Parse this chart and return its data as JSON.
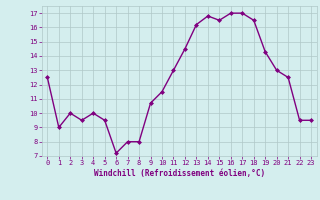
{
  "x": [
    0,
    1,
    2,
    3,
    4,
    5,
    6,
    7,
    8,
    9,
    10,
    11,
    12,
    13,
    14,
    15,
    16,
    17,
    18,
    19,
    20,
    21,
    22,
    23
  ],
  "y": [
    12.5,
    9.0,
    10.0,
    9.5,
    10.0,
    9.5,
    7.2,
    8.0,
    8.0,
    10.7,
    11.5,
    13.0,
    14.5,
    16.2,
    16.8,
    16.5,
    17.0,
    17.0,
    16.5,
    14.3,
    13.0,
    12.5,
    9.5,
    9.5
  ],
  "line_color": "#800080",
  "marker": "D",
  "marker_size": 2,
  "bg_color": "#d4eeee",
  "grid_color": "#b0c8c8",
  "xlabel": "Windchill (Refroidissement éolien,°C)",
  "xlabel_color": "#800080",
  "tick_color": "#800080",
  "ylim": [
    7,
    17.5
  ],
  "xlim": [
    -0.5,
    23.5
  ],
  "yticks": [
    7,
    8,
    9,
    10,
    11,
    12,
    13,
    14,
    15,
    16,
    17
  ],
  "xticks": [
    0,
    1,
    2,
    3,
    4,
    5,
    6,
    7,
    8,
    9,
    10,
    11,
    12,
    13,
    14,
    15,
    16,
    17,
    18,
    19,
    20,
    21,
    22,
    23
  ],
  "linewidth": 1.0,
  "tick_fontsize": 5,
  "xlabel_fontsize": 5.5
}
